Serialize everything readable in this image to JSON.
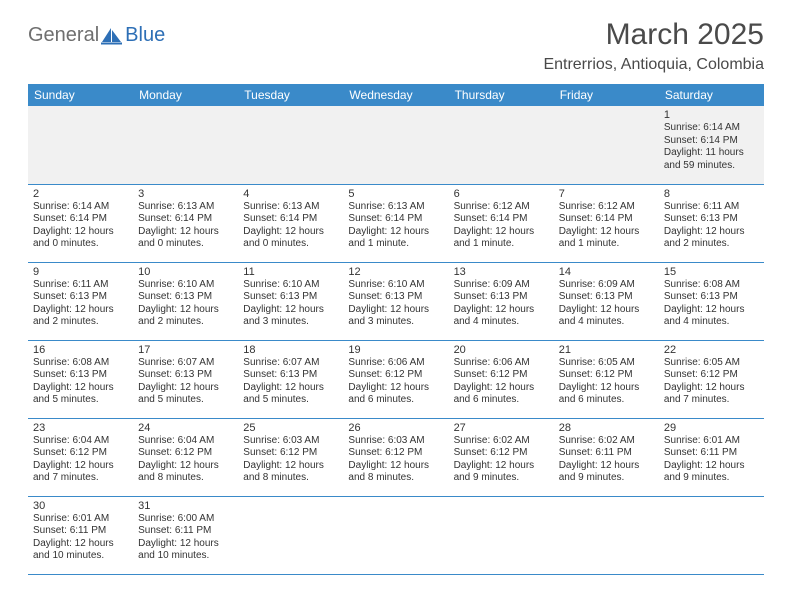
{
  "brand": {
    "text1": "General",
    "text2": "Blue"
  },
  "title": "March 2025",
  "location": "Entrerrios, Antioquia, Colombia",
  "colors": {
    "header_bg": "#3a8ac9",
    "header_text": "#ffffff",
    "row_border": "#3a8ac9",
    "first_row_bg": "#f1f1f1",
    "brand_gray": "#6f6f6f",
    "brand_blue": "#2d6fb6",
    "text": "#333333",
    "page_bg": "#ffffff"
  },
  "day_headers": [
    "Sunday",
    "Monday",
    "Tuesday",
    "Wednesday",
    "Thursday",
    "Friday",
    "Saturday"
  ],
  "weeks": [
    [
      null,
      null,
      null,
      null,
      null,
      null,
      {
        "n": "1",
        "sunrise": "Sunrise: 6:14 AM",
        "sunset": "Sunset: 6:14 PM",
        "daylight": "Daylight: 11 hours and 59 minutes."
      }
    ],
    [
      {
        "n": "2",
        "sunrise": "Sunrise: 6:14 AM",
        "sunset": "Sunset: 6:14 PM",
        "daylight": "Daylight: 12 hours and 0 minutes."
      },
      {
        "n": "3",
        "sunrise": "Sunrise: 6:13 AM",
        "sunset": "Sunset: 6:14 PM",
        "daylight": "Daylight: 12 hours and 0 minutes."
      },
      {
        "n": "4",
        "sunrise": "Sunrise: 6:13 AM",
        "sunset": "Sunset: 6:14 PM",
        "daylight": "Daylight: 12 hours and 0 minutes."
      },
      {
        "n": "5",
        "sunrise": "Sunrise: 6:13 AM",
        "sunset": "Sunset: 6:14 PM",
        "daylight": "Daylight: 12 hours and 1 minute."
      },
      {
        "n": "6",
        "sunrise": "Sunrise: 6:12 AM",
        "sunset": "Sunset: 6:14 PM",
        "daylight": "Daylight: 12 hours and 1 minute."
      },
      {
        "n": "7",
        "sunrise": "Sunrise: 6:12 AM",
        "sunset": "Sunset: 6:14 PM",
        "daylight": "Daylight: 12 hours and 1 minute."
      },
      {
        "n": "8",
        "sunrise": "Sunrise: 6:11 AM",
        "sunset": "Sunset: 6:13 PM",
        "daylight": "Daylight: 12 hours and 2 minutes."
      }
    ],
    [
      {
        "n": "9",
        "sunrise": "Sunrise: 6:11 AM",
        "sunset": "Sunset: 6:13 PM",
        "daylight": "Daylight: 12 hours and 2 minutes."
      },
      {
        "n": "10",
        "sunrise": "Sunrise: 6:10 AM",
        "sunset": "Sunset: 6:13 PM",
        "daylight": "Daylight: 12 hours and 2 minutes."
      },
      {
        "n": "11",
        "sunrise": "Sunrise: 6:10 AM",
        "sunset": "Sunset: 6:13 PM",
        "daylight": "Daylight: 12 hours and 3 minutes."
      },
      {
        "n": "12",
        "sunrise": "Sunrise: 6:10 AM",
        "sunset": "Sunset: 6:13 PM",
        "daylight": "Daylight: 12 hours and 3 minutes."
      },
      {
        "n": "13",
        "sunrise": "Sunrise: 6:09 AM",
        "sunset": "Sunset: 6:13 PM",
        "daylight": "Daylight: 12 hours and 4 minutes."
      },
      {
        "n": "14",
        "sunrise": "Sunrise: 6:09 AM",
        "sunset": "Sunset: 6:13 PM",
        "daylight": "Daylight: 12 hours and 4 minutes."
      },
      {
        "n": "15",
        "sunrise": "Sunrise: 6:08 AM",
        "sunset": "Sunset: 6:13 PM",
        "daylight": "Daylight: 12 hours and 4 minutes."
      }
    ],
    [
      {
        "n": "16",
        "sunrise": "Sunrise: 6:08 AM",
        "sunset": "Sunset: 6:13 PM",
        "daylight": "Daylight: 12 hours and 5 minutes."
      },
      {
        "n": "17",
        "sunrise": "Sunrise: 6:07 AM",
        "sunset": "Sunset: 6:13 PM",
        "daylight": "Daylight: 12 hours and 5 minutes."
      },
      {
        "n": "18",
        "sunrise": "Sunrise: 6:07 AM",
        "sunset": "Sunset: 6:13 PM",
        "daylight": "Daylight: 12 hours and 5 minutes."
      },
      {
        "n": "19",
        "sunrise": "Sunrise: 6:06 AM",
        "sunset": "Sunset: 6:12 PM",
        "daylight": "Daylight: 12 hours and 6 minutes."
      },
      {
        "n": "20",
        "sunrise": "Sunrise: 6:06 AM",
        "sunset": "Sunset: 6:12 PM",
        "daylight": "Daylight: 12 hours and 6 minutes."
      },
      {
        "n": "21",
        "sunrise": "Sunrise: 6:05 AM",
        "sunset": "Sunset: 6:12 PM",
        "daylight": "Daylight: 12 hours and 6 minutes."
      },
      {
        "n": "22",
        "sunrise": "Sunrise: 6:05 AM",
        "sunset": "Sunset: 6:12 PM",
        "daylight": "Daylight: 12 hours and 7 minutes."
      }
    ],
    [
      {
        "n": "23",
        "sunrise": "Sunrise: 6:04 AM",
        "sunset": "Sunset: 6:12 PM",
        "daylight": "Daylight: 12 hours and 7 minutes."
      },
      {
        "n": "24",
        "sunrise": "Sunrise: 6:04 AM",
        "sunset": "Sunset: 6:12 PM",
        "daylight": "Daylight: 12 hours and 8 minutes."
      },
      {
        "n": "25",
        "sunrise": "Sunrise: 6:03 AM",
        "sunset": "Sunset: 6:12 PM",
        "daylight": "Daylight: 12 hours and 8 minutes."
      },
      {
        "n": "26",
        "sunrise": "Sunrise: 6:03 AM",
        "sunset": "Sunset: 6:12 PM",
        "daylight": "Daylight: 12 hours and 8 minutes."
      },
      {
        "n": "27",
        "sunrise": "Sunrise: 6:02 AM",
        "sunset": "Sunset: 6:12 PM",
        "daylight": "Daylight: 12 hours and 9 minutes."
      },
      {
        "n": "28",
        "sunrise": "Sunrise: 6:02 AM",
        "sunset": "Sunset: 6:11 PM",
        "daylight": "Daylight: 12 hours and 9 minutes."
      },
      {
        "n": "29",
        "sunrise": "Sunrise: 6:01 AM",
        "sunset": "Sunset: 6:11 PM",
        "daylight": "Daylight: 12 hours and 9 minutes."
      }
    ],
    [
      {
        "n": "30",
        "sunrise": "Sunrise: 6:01 AM",
        "sunset": "Sunset: 6:11 PM",
        "daylight": "Daylight: 12 hours and 10 minutes."
      },
      {
        "n": "31",
        "sunrise": "Sunrise: 6:00 AM",
        "sunset": "Sunset: 6:11 PM",
        "daylight": "Daylight: 12 hours and 10 minutes."
      },
      null,
      null,
      null,
      null,
      null
    ]
  ]
}
